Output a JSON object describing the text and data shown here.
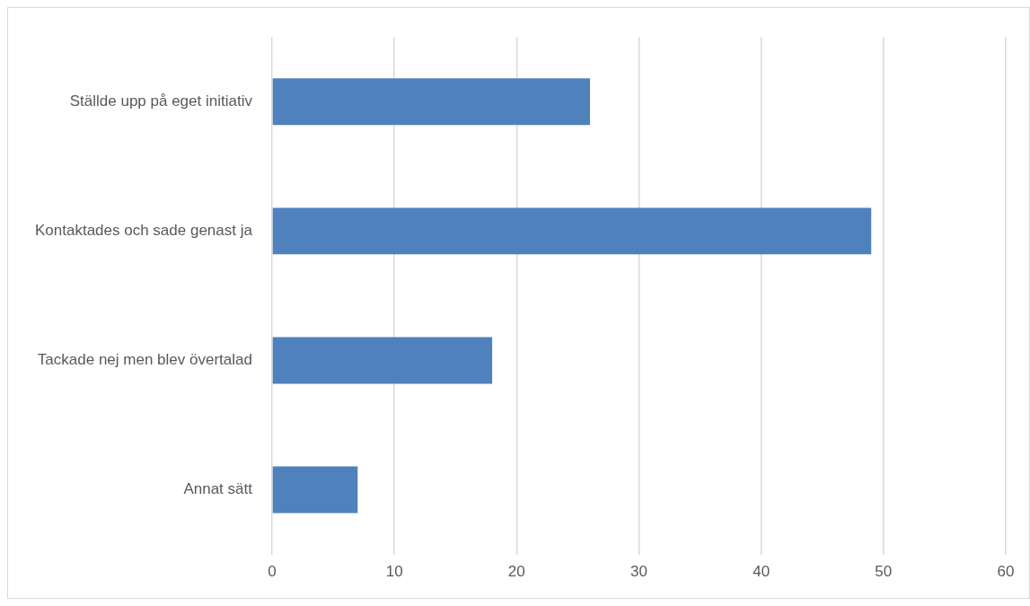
{
  "chart_data": {
    "type": "bar",
    "orientation": "horizontal",
    "categories": [
      "Ställde upp på eget initiativ",
      "Kontaktades och sade genast ja",
      "Tackade nej men blev övertalad",
      "Annat sätt"
    ],
    "values": [
      26,
      49,
      18,
      7
    ],
    "color": "#4f81bd",
    "xlim": [
      0,
      60
    ],
    "xticks": [
      0,
      10,
      20,
      30,
      40,
      50,
      60
    ],
    "grid": "x",
    "legend": false
  }
}
